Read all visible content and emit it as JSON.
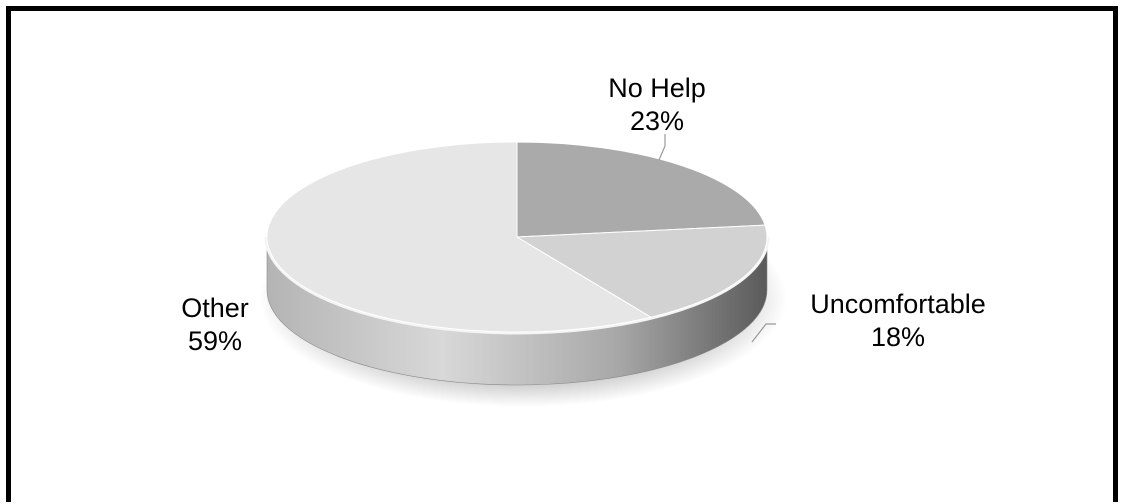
{
  "chart_data": {
    "type": "pie",
    "style": "3d",
    "slices": [
      {
        "label": "No Help",
        "value": 23,
        "pct_text": "23%",
        "color": "#aaaaaa"
      },
      {
        "label": "Uncomfortable",
        "value": 18,
        "pct_text": "18%",
        "color": "#d2d2d2"
      },
      {
        "label": "Other",
        "value": 59,
        "pct_text": "59%",
        "color": "#e6e6e6"
      }
    ],
    "legend": "none",
    "data_labels": "outside"
  },
  "colors": {
    "border": "#000000",
    "leader_line": "#9a9a9a"
  }
}
